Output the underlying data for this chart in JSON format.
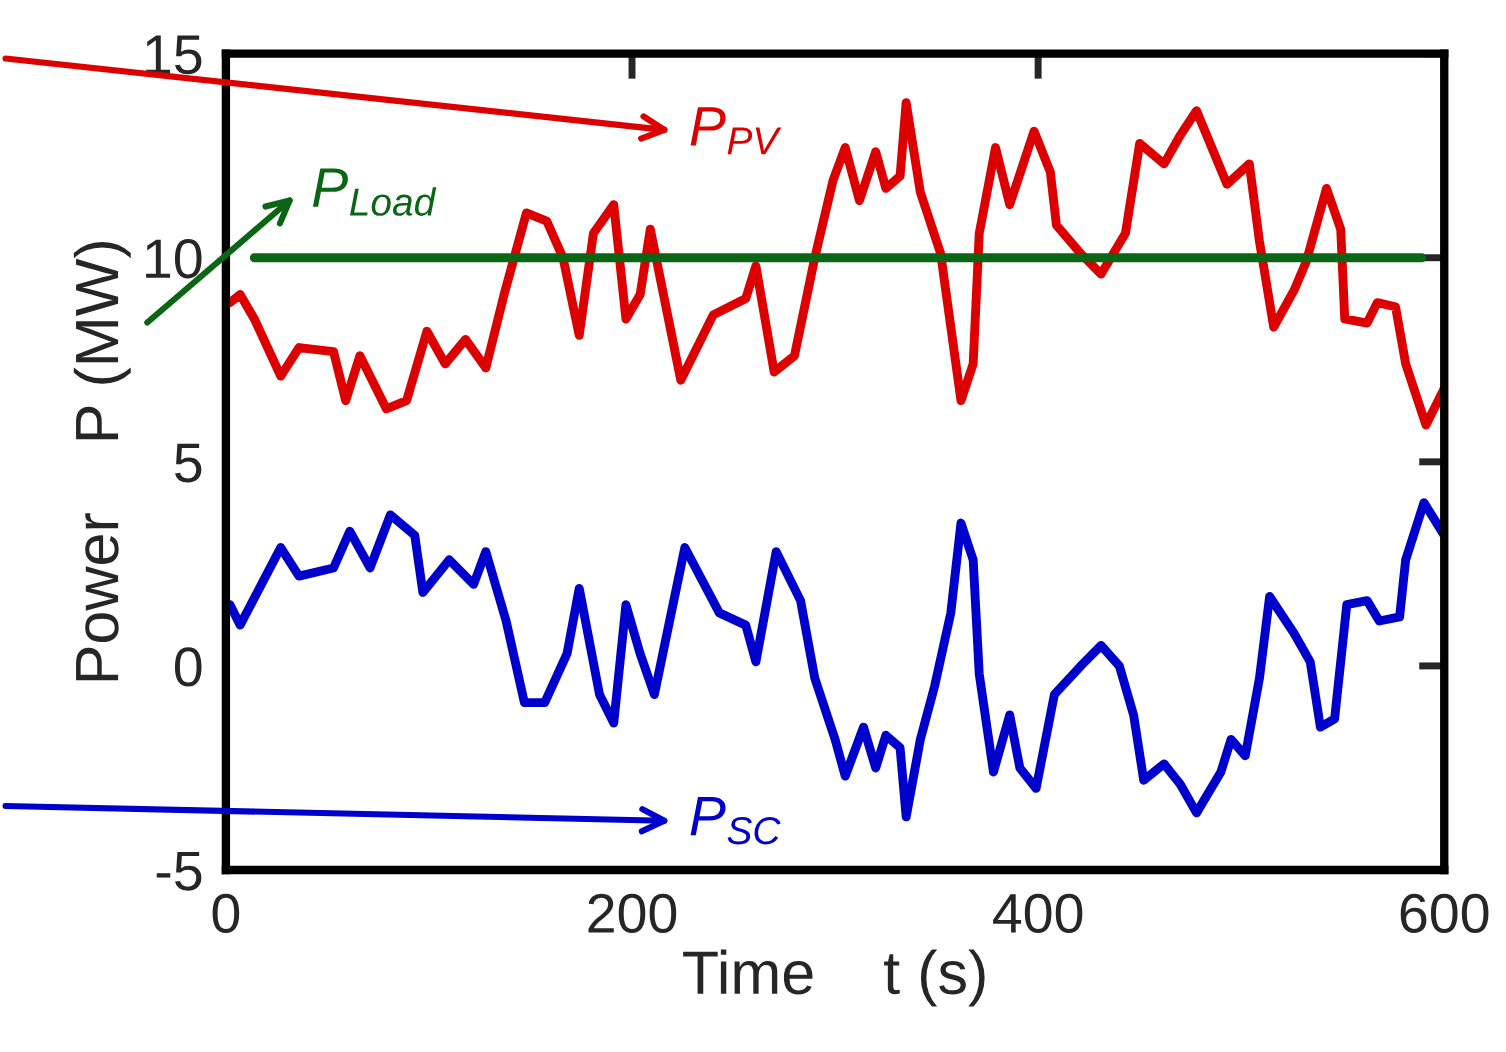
{
  "chart_data": {
    "type": "line",
    "xlabel": "Time    t (s)",
    "ylabel": "Power    P (MW)",
    "xlim": [
      0,
      600
    ],
    "xticks": [
      0,
      200,
      400,
      600
    ],
    "ylim": [
      -5,
      15
    ],
    "yticks": [
      -5,
      0,
      5,
      10,
      15
    ],
    "grid": false,
    "legend": "left",
    "marker": "none",
    "line_style": "solid",
    "series": [
      {
        "name": "P$_{PV}$",
        "color": "#dd0000",
        "x": [
          2,
          7,
          14,
          27,
          36,
          53,
          59,
          66,
          79,
          89,
          99,
          108,
          118,
          128,
          137,
          148,
          158,
          166,
          174,
          181,
          191,
          197,
          204,
          209,
          224,
          240,
          256,
          261,
          270,
          280,
          290,
          299,
          305,
          312,
          320,
          325,
          332,
          335,
          342,
          352,
          362,
          368,
          371,
          379,
          386,
          398,
          406,
          409,
          421,
          431,
          443,
          450,
          462,
          470,
          478,
          493,
          504,
          509,
          516,
          526,
          532,
          542,
          549,
          551,
          562,
          567,
          576,
          581,
          591,
          600
        ],
        "values": [
          8.9,
          9.1,
          8.5,
          7.1,
          7.8,
          7.7,
          6.5,
          7.6,
          6.3,
          6.5,
          8.2,
          7.4,
          8.0,
          7.3,
          9.1,
          11.1,
          10.9,
          10.0,
          8.1,
          10.6,
          11.3,
          8.5,
          9.1,
          10.7,
          7.0,
          8.6,
          9.0,
          9.8,
          7.2,
          7.6,
          10.0,
          11.9,
          12.7,
          11.4,
          12.6,
          11.7,
          12.0,
          13.8,
          11.6,
          10.1,
          6.5,
          7.4,
          10.6,
          12.7,
          11.3,
          13.1,
          12.1,
          10.8,
          10.1,
          9.6,
          10.6,
          12.8,
          12.3,
          13.0,
          13.6,
          11.8,
          12.3,
          10.4,
          8.3,
          9.2,
          9.9,
          11.7,
          10.7,
          8.5,
          8.4,
          8.9,
          8.8,
          7.4,
          5.9,
          6.8
        ]
      },
      {
        "name": "P$_{Load}$",
        "color": "#0a6614",
        "x": [
          14,
          589
        ],
        "values": [
          10,
          10
        ]
      },
      {
        "name": "P$_{SC}$",
        "color": "#0000cc",
        "x": [
          2,
          7,
          27,
          36,
          53,
          61,
          71,
          81,
          93,
          97,
          110,
          122,
          128,
          138,
          147,
          157,
          168,
          174,
          184,
          191,
          197,
          204,
          211,
          226,
          243,
          256,
          261,
          271,
          283,
          290,
          300,
          305,
          314,
          320,
          325,
          332,
          335,
          342,
          349,
          357,
          362,
          368,
          371,
          378,
          386,
          391,
          399,
          408,
          421,
          431,
          440,
          447,
          452,
          462,
          470,
          478,
          490,
          495,
          502,
          509,
          514,
          526,
          534,
          539,
          546,
          552,
          562,
          568,
          578,
          581,
          590,
          600
        ],
        "values": [
          1.5,
          1.0,
          2.9,
          2.2,
          2.4,
          3.3,
          2.4,
          3.7,
          3.2,
          1.8,
          2.6,
          2.0,
          2.8,
          1.1,
          -0.9,
          -0.9,
          0.3,
          1.9,
          -0.7,
          -1.4,
          1.5,
          0.3,
          -0.7,
          2.9,
          1.3,
          1.0,
          0.1,
          2.8,
          1.6,
          -0.3,
          -1.8,
          -2.7,
          -1.5,
          -2.5,
          -1.7,
          -2.0,
          -3.7,
          -1.8,
          -0.5,
          1.3,
          3.5,
          2.6,
          -0.2,
          -2.6,
          -1.2,
          -2.5,
          -3.0,
          -0.7,
          0.0,
          0.5,
          0.0,
          -1.2,
          -2.8,
          -2.4,
          -2.9,
          -3.6,
          -2.6,
          -1.8,
          -2.2,
          -0.3,
          1.7,
          0.8,
          0.1,
          -1.5,
          -1.3,
          1.5,
          1.6,
          1.1,
          1.2,
          2.6,
          4.0,
          3.2
        ]
      }
    ]
  }
}
